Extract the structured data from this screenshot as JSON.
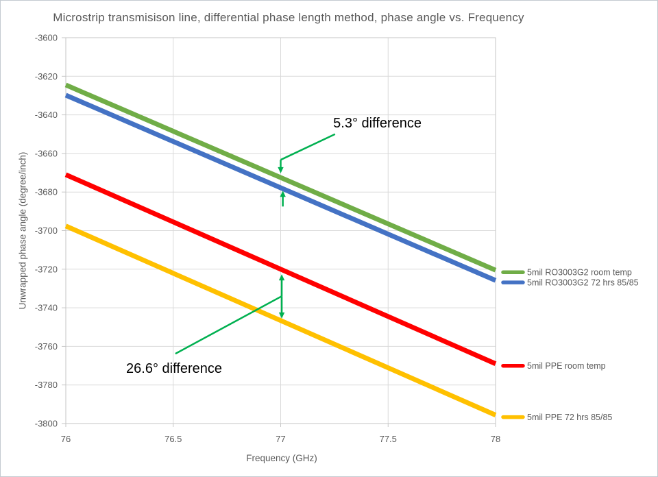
{
  "chart_data": {
    "type": "line",
    "title": "Microstrip transmisison line, differential phase length method, phase angle vs. Frequency",
    "xlabel": "Frequency (GHz)",
    "ylabel": "Unwrapped phase angle (degree/inch)",
    "xlim": [
      76,
      78
    ],
    "ylim": [
      -3800,
      -3600
    ],
    "x_ticks": [
      76,
      76.5,
      77,
      77.5,
      78
    ],
    "y_ticks": [
      -3600,
      -3620,
      -3640,
      -3660,
      -3680,
      -3700,
      -3720,
      -3740,
      -3760,
      -3780,
      -3800
    ],
    "grid": true,
    "legend_position": "right of line ends",
    "series": [
      {
        "name": "5mil RO3003G2 room temp",
        "color": "#70AD47",
        "x": [
          76,
          77,
          78
        ],
        "y": [
          -3624.5,
          -3672.5,
          -3720.5
        ]
      },
      {
        "name": "5mil RO3003G2 72 hrs 85/85",
        "color": "#4472C4",
        "x": [
          76,
          77,
          78
        ],
        "y": [
          -3629.8,
          -3677.8,
          -3725.8
        ]
      },
      {
        "name": "5mil PPE room temp",
        "color": "#FF0000",
        "x": [
          76,
          77,
          78
        ],
        "y": [
          -3671.0,
          -3720.0,
          -3769.0
        ]
      },
      {
        "name": "5mil PPE 72 hrs 85/85",
        "color": "#FFC000",
        "x": [
          76,
          77,
          78
        ],
        "y": [
          -3697.6,
          -3746.6,
          -3795.6
        ]
      }
    ],
    "annotations": [
      {
        "label": "5.3° difference",
        "between": [
          "5mil RO3003G2 room temp",
          "5mil RO3003G2 72 hrs 85/85"
        ],
        "at_x": 77,
        "text_pos": [
          77.45,
          -3644
        ],
        "leader": [
          [
            77.253,
            -3650
          ],
          [
            77.0,
            -3663.3
          ]
        ],
        "arrows": [
          {
            "from": [
              77.0,
              -3663.3
            ],
            "to": [
              77.0,
              -3670.3
            ]
          },
          {
            "from": [
              77.01,
              -3687.5
            ],
            "to": [
              77.01,
              -3679.3
            ]
          }
        ]
      },
      {
        "label": "26.6° difference",
        "between": [
          "5mil PPE room temp",
          "5mil PPE 72 hrs 85/85"
        ],
        "at_x": 77,
        "text_pos": [
          76.504,
          -3771.3
        ],
        "leader": [
          [
            76.51,
            -3763.8
          ],
          [
            77.005,
            -3734.0
          ]
        ],
        "arrows": [
          {
            "from": [
              77.005,
              -3734.0
            ],
            "to": [
              77.005,
              -3722.6
            ]
          },
          {
            "from": [
              77.005,
              -3734.0
            ],
            "to": [
              77.005,
              -3745.6
            ]
          }
        ]
      }
    ],
    "colors": {
      "annotation": "#00B050",
      "annotation_text": "#000000",
      "gridline": "#D9D9D9",
      "plot_border": "#C6C6C6",
      "axis_text": "#595959"
    }
  }
}
